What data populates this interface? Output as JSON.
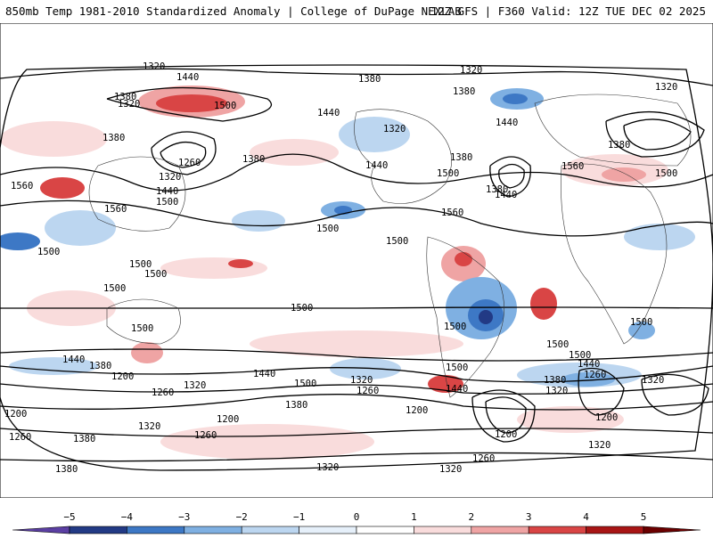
{
  "header": {
    "left_title": "850mb Temp 1981-2010 Standardized Anomaly | College of DuPage NEXLAB",
    "right_title": "12Z GFS | F360 Valid: 12Z TUE DEC 02 2025"
  },
  "contour_labels": [
    "1320",
    "1440",
    "1380",
    "1500",
    "1320",
    "1380",
    "1320",
    "1380",
    "1440",
    "1320",
    "1380",
    "1440",
    "1380",
    "1260",
    "1320",
    "1380",
    "1560",
    "1440",
    "1500",
    "1560",
    "1320",
    "1440",
    "1500",
    "1380",
    "1500",
    "1500",
    "1560",
    "1500",
    "1560",
    "1380",
    "1500",
    "1440",
    "1500",
    "1500",
    "1500",
    "1500",
    "1500",
    "1500",
    "1500",
    "1500",
    "1440",
    "1380",
    "1200",
    "1260",
    "1320",
    "1440",
    "1500",
    "1320",
    "1380",
    "1200",
    "1320",
    "1260",
    "1440",
    "1500",
    "1200",
    "1200",
    "1260",
    "1320",
    "1380",
    "1320",
    "1260",
    "1200",
    "1500",
    "1320",
    "1440",
    "1380",
    "1260",
    "1200",
    "1320",
    "1260",
    "1320",
    "1380"
  ],
  "colorbar": {
    "ticks": [
      "−5",
      "−4",
      "−3",
      "−2",
      "−1",
      "0",
      "1",
      "2",
      "3",
      "4",
      "5"
    ],
    "colors": [
      "#5b3fa3",
      "#223a85",
      "#3d78c5",
      "#7fb0e2",
      "#bcd6f0",
      "#e6f0fa",
      "#ffffff",
      "#f9dcdc",
      "#efa4a4",
      "#d94545",
      "#a81515",
      "#6b0000",
      "#f0b000"
    ]
  }
}
